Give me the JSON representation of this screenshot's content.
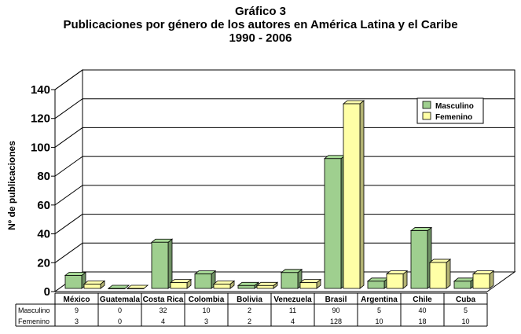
{
  "chart_data": {
    "type": "bar",
    "title": "Gráfico 3",
    "subtitle": "Publicaciones por género de los autores en América Latina y el Caribe",
    "period": "1990 - 2006",
    "ylabel": "Nº de publicaciones",
    "xlabel": "",
    "ylim": [
      0,
      140
    ],
    "yticks": [
      "0",
      "20",
      "40",
      "60",
      "80",
      "100",
      "120",
      "140"
    ],
    "grid": true,
    "legend_position": "top-right",
    "categories": [
      "México",
      "Guatemala",
      "Costa Rica",
      "Colombia",
      "Bolivia",
      "Venezuela",
      "Brasil",
      "Argentina",
      "Chile",
      "Cuba"
    ],
    "series": [
      {
        "name": "Masculino",
        "color": "#9fcf8f",
        "values": [
          9,
          0,
          32,
          10,
          2,
          11,
          90,
          5,
          40,
          5
        ]
      },
      {
        "name": "Femenino",
        "color": "#ffffa6",
        "values": [
          3,
          0,
          4,
          3,
          2,
          4,
          128,
          10,
          18,
          10
        ]
      }
    ],
    "table": {
      "rows": [
        {
          "label": "Masculino",
          "values": [
            "9",
            "0",
            "32",
            "10",
            "2",
            "11",
            "90",
            "5",
            "40",
            "5"
          ]
        },
        {
          "label": "Femenino",
          "values": [
            "3",
            "0",
            "4",
            "3",
            "2",
            "4",
            "128",
            "10",
            "18",
            "10"
          ]
        }
      ]
    }
  }
}
